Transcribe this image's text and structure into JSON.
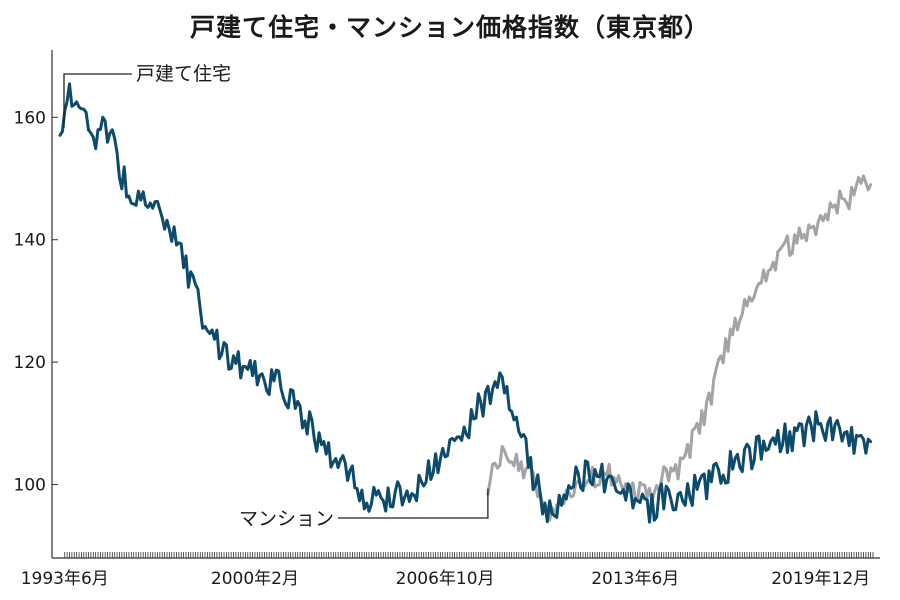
{
  "chart_data": {
    "type": "line",
    "title": "戸建て住宅・マンション価格指数（東京都）",
    "xlabel": "",
    "ylabel": "",
    "ylim": [
      88,
      171
    ],
    "y_ticks": [
      100,
      120,
      140,
      160
    ],
    "x_range": [
      "1993-04",
      "2021-10"
    ],
    "x_ticks": [
      {
        "label": "1993年6月",
        "date": "1993-06"
      },
      {
        "label": "2000年2月",
        "date": "2000-02"
      },
      {
        "label": "2006年10月",
        "date": "2006-10"
      },
      {
        "label": "2013年6月",
        "date": "2013-06"
      },
      {
        "label": "2019年12月",
        "date": "2019-12"
      }
    ],
    "grid": false,
    "legend": "direct labels",
    "series": [
      {
        "name": "戸建て住宅",
        "color": "#0d4a6b",
        "points": [
          [
            "1993-04",
            156
          ],
          [
            "1993-06",
            161
          ],
          [
            "1993-09",
            164
          ],
          [
            "1994-01",
            160
          ],
          [
            "1994-06",
            157
          ],
          [
            "1995-01",
            158
          ],
          [
            "1995-06",
            150
          ],
          [
            "1996-01",
            146
          ],
          [
            "1996-06",
            148
          ],
          [
            "1997-01",
            142
          ],
          [
            "1997-06",
            138
          ],
          [
            "1998-01",
            131
          ],
          [
            "1998-06",
            126
          ],
          [
            "1999-01",
            121
          ],
          [
            "1999-06",
            120
          ],
          [
            "2000-01",
            118
          ],
          [
            "2000-06",
            117
          ],
          [
            "2001-01",
            116
          ],
          [
            "2001-06",
            113
          ],
          [
            "2002-01",
            110
          ],
          [
            "2002-06",
            106
          ],
          [
            "2003-01",
            104
          ],
          [
            "2003-06",
            101
          ],
          [
            "2004-01",
            98
          ],
          [
            "2004-06",
            97
          ],
          [
            "2005-01",
            99
          ],
          [
            "2005-06",
            98
          ],
          [
            "2006-01",
            101
          ],
          [
            "2006-06",
            103
          ],
          [
            "2007-01",
            106
          ],
          [
            "2007-06",
            109
          ],
          [
            "2008-01",
            113
          ],
          [
            "2008-06",
            116
          ],
          [
            "2008-10",
            117
          ],
          [
            "2009-01",
            114
          ],
          [
            "2009-06",
            108
          ],
          [
            "2010-01",
            99
          ],
          [
            "2010-06",
            95
          ],
          [
            "2011-01",
            98
          ],
          [
            "2011-06",
            101
          ],
          [
            "2012-01",
            102
          ],
          [
            "2012-06",
            101
          ],
          [
            "2013-01",
            99
          ],
          [
            "2013-06",
            97
          ],
          [
            "2014-01",
            96
          ],
          [
            "2014-06",
            98
          ],
          [
            "2015-01",
            98
          ],
          [
            "2015-06",
            99
          ],
          [
            "2016-01",
            100
          ],
          [
            "2016-06",
            102
          ],
          [
            "2017-01",
            104
          ],
          [
            "2017-06",
            105
          ],
          [
            "2018-01",
            106
          ],
          [
            "2018-06",
            107
          ],
          [
            "2019-01",
            108
          ],
          [
            "2019-06",
            109
          ],
          [
            "2020-01",
            110
          ],
          [
            "2020-06",
            109
          ],
          [
            "2021-01",
            107
          ],
          [
            "2021-06",
            108
          ],
          [
            "2021-09",
            107
          ]
        ]
      },
      {
        "name": "マンション",
        "color": "#a3a3a8",
        "points": [
          [
            "2008-04",
            100
          ],
          [
            "2008-09",
            104
          ],
          [
            "2009-01",
            105
          ],
          [
            "2009-06",
            103
          ],
          [
            "2010-01",
            99
          ],
          [
            "2010-06",
            96
          ],
          [
            "2011-01",
            98
          ],
          [
            "2011-06",
            100
          ],
          [
            "2012-01",
            101
          ],
          [
            "2012-06",
            102
          ],
          [
            "2013-01",
            100
          ],
          [
            "2013-06",
            99
          ],
          [
            "2014-01",
            99
          ],
          [
            "2014-06",
            101
          ],
          [
            "2015-01",
            103
          ],
          [
            "2015-06",
            107
          ],
          [
            "2016-01",
            113
          ],
          [
            "2016-06",
            120
          ],
          [
            "2017-01",
            127
          ],
          [
            "2017-06",
            131
          ],
          [
            "2018-01",
            135
          ],
          [
            "2018-06",
            137
          ],
          [
            "2019-01",
            140
          ],
          [
            "2019-06",
            141
          ],
          [
            "2020-01",
            143
          ],
          [
            "2020-06",
            146
          ],
          [
            "2021-01",
            147
          ],
          [
            "2021-06",
            149
          ],
          [
            "2021-09",
            149
          ]
        ]
      }
    ]
  }
}
